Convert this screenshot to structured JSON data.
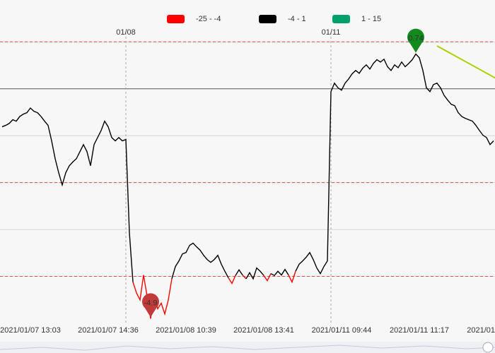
{
  "chart_data": {
    "type": "line",
    "legend": [
      {
        "label": "-25 - -4",
        "min": -25,
        "max": -4,
        "color": "#ff0000"
      },
      {
        "label": "-4 - 1",
        "min": -4,
        "max": 1,
        "color": "#000000"
      },
      {
        "label": "1 - 15",
        "min": 1,
        "max": 15,
        "color": "#00a06b"
      }
    ],
    "categories": [
      null,
      null,
      null,
      null,
      null,
      null,
      null,
      null,
      "2021/01/07 13:03",
      null,
      null,
      null,
      null,
      null,
      null,
      null,
      null,
      null,
      null,
      null,
      null,
      null,
      null,
      null,
      null,
      null,
      null,
      null,
      null,
      null,
      "2021/01/07 14:36",
      null,
      null,
      null,
      null,
      null,
      null,
      null,
      null,
      null,
      null,
      null,
      null,
      null,
      null,
      null,
      null,
      null,
      null,
      null,
      null,
      null,
      "2021/01/08 10:39",
      null,
      null,
      null,
      null,
      null,
      null,
      null,
      null,
      null,
      null,
      null,
      null,
      null,
      null,
      null,
      null,
      null,
      null,
      null,
      null,
      null,
      "2021/01/08 13:41",
      null,
      null,
      null,
      null,
      null,
      null,
      null,
      null,
      null,
      null,
      null,
      null,
      null,
      null,
      null,
      null,
      null,
      null,
      null,
      null,
      null,
      "2021/01/11 09:44",
      null,
      null,
      null,
      null,
      null,
      null,
      null,
      null,
      null,
      null,
      null,
      null,
      null,
      null,
      null,
      null,
      null,
      null,
      null,
      null,
      null,
      "2021/01/11 11:17",
      null,
      null,
      null,
      null,
      null,
      null,
      null,
      null,
      null,
      null,
      null,
      null,
      null,
      null,
      null,
      null,
      null,
      null,
      null,
      "2021/01",
      null
    ],
    "values": [
      -0.81,
      -0.78,
      -0.74,
      -0.66,
      -0.69,
      -0.59,
      -0.54,
      -0.51,
      -0.41,
      -0.48,
      -0.51,
      -0.59,
      -0.69,
      -0.78,
      -1.11,
      -1.49,
      -1.79,
      -2.05,
      -1.79,
      -1.64,
      -1.56,
      -1.49,
      -1.34,
      -1.19,
      -1.34,
      -1.64,
      -1.19,
      -1.04,
      -0.89,
      -0.69,
      -0.81,
      -1.04,
      -1.11,
      -1.04,
      -1.11,
      -1.08,
      -3.07,
      -4.12,
      -4.35,
      -4.5,
      -3.97,
      -4.42,
      -4.9,
      -4.42,
      -4.69,
      -4.57,
      -4.8,
      -4.5,
      -4.05,
      -3.79,
      -3.67,
      -3.52,
      -3.49,
      -3.34,
      -3.29,
      -3.37,
      -3.44,
      -3.55,
      -3.64,
      -3.7,
      -3.64,
      -3.55,
      -3.74,
      -3.89,
      -4.03,
      -4.15,
      -3.98,
      -3.86,
      -3.97,
      -4.05,
      -3.92,
      -4.05,
      -3.82,
      -3.89,
      -3.98,
      -4.09,
      -3.94,
      -3.98,
      -3.89,
      -3.97,
      -3.85,
      -3.97,
      -4.12,
      -3.89,
      -3.74,
      -3.67,
      -3.59,
      -3.49,
      -3.64,
      -3.82,
      -3.94,
      -3.79,
      -3.67,
      -0.06,
      0.12,
      0.02,
      -0.03,
      0.12,
      0.21,
      0.32,
      0.39,
      0.33,
      0.44,
      0.51,
      0.42,
      0.54,
      0.62,
      0.57,
      0.63,
      0.47,
      0.39,
      0.51,
      0.45,
      0.57,
      0.47,
      0.54,
      0.62,
      0.74,
      0.66,
      0.39,
      0.02,
      -0.06,
      0.09,
      0.12,
      0.02,
      -0.14,
      -0.24,
      -0.33,
      -0.36,
      -0.51,
      -0.59,
      -0.63,
      -0.66,
      -0.69,
      -0.78,
      -0.89,
      -0.99,
      -1.04,
      -1.19,
      -1.11
    ],
    "ylim": [
      -5,
      1.2
    ],
    "yticks": [
      -4,
      -3,
      -2,
      -1,
      0,
      1
    ],
    "grid": true,
    "zero_line": true,
    "mark_lines": [
      1,
      -2,
      -4
    ],
    "mark_line_color": "#d9534f",
    "mark_points": [
      {
        "type": "max",
        "color": "#138a1e"
      },
      {
        "type": "min",
        "color": "#c23a3a"
      }
    ],
    "splits": [
      {
        "index": 35,
        "label": "01/08"
      },
      {
        "index": 93,
        "label": "01/11"
      }
    ]
  }
}
